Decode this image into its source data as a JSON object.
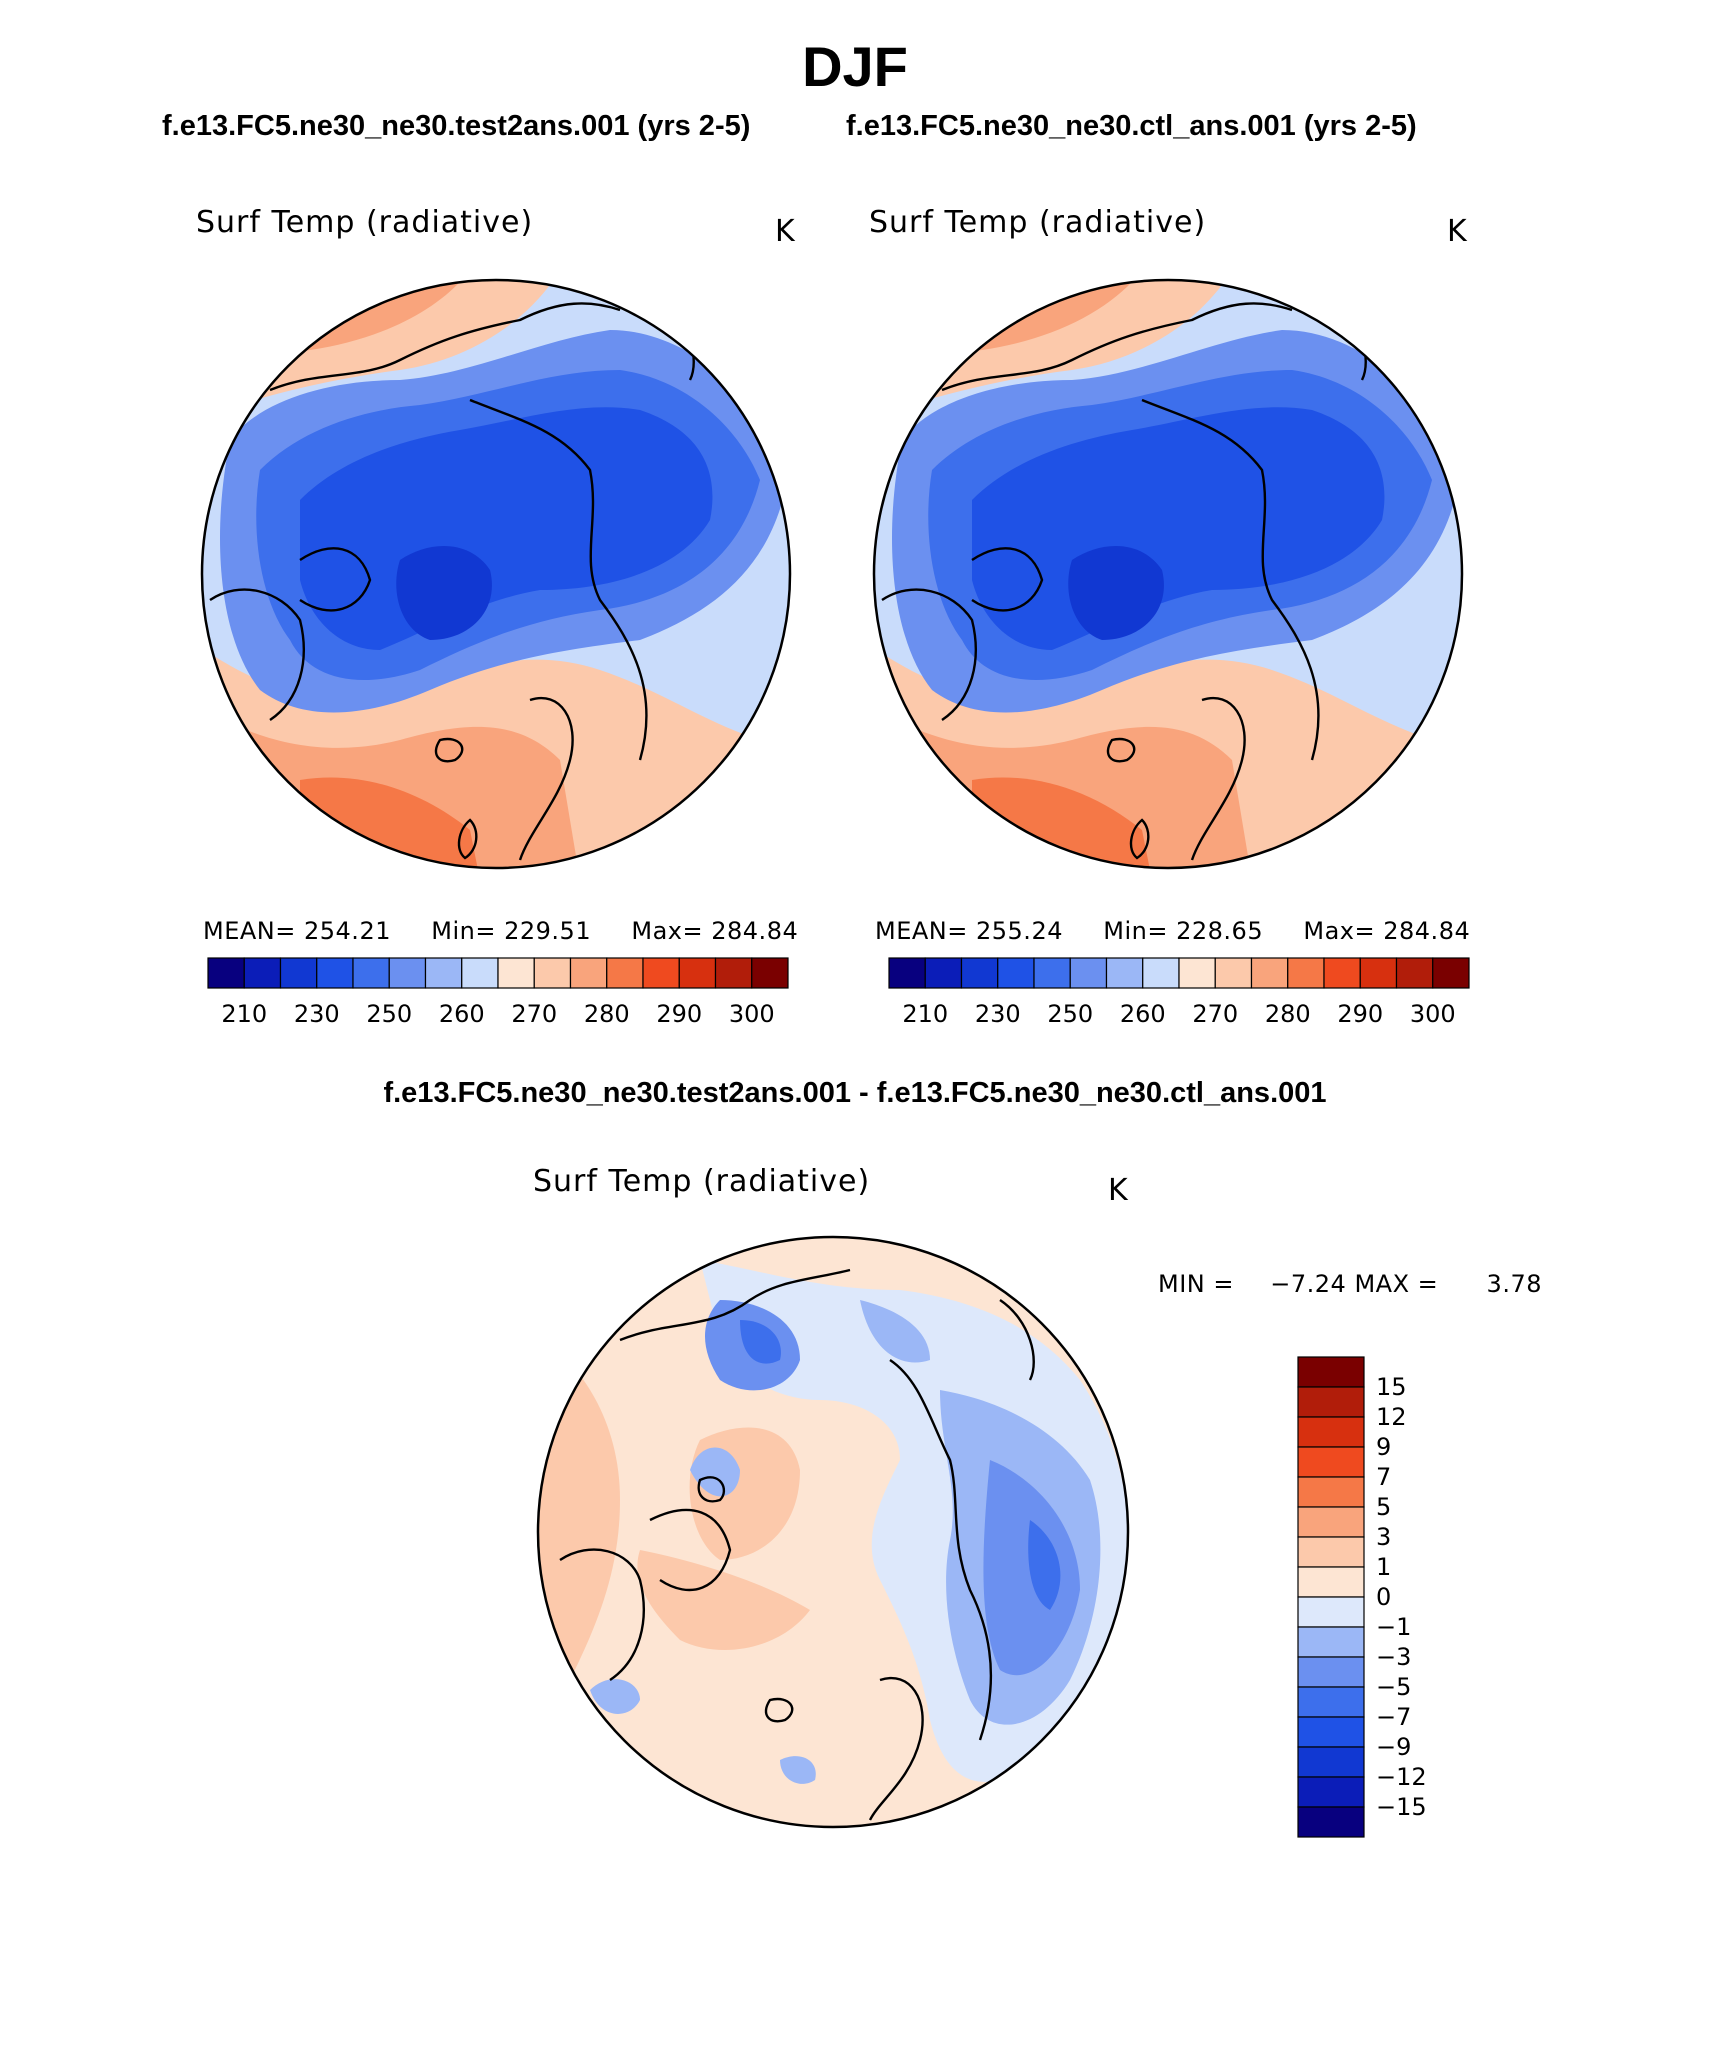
{
  "page": {
    "title": "DJF",
    "subtitle_left": "f.e13.FC5.ne30_ne30.test2ans.001 (yrs 2-5)",
    "subtitle_right": "f.e13.FC5.ne30_ne30.ctl_ans.001 (yrs 2-5)",
    "diff_title": "f.e13.FC5.ne30_ne30.test2ans.001 - f.e13.FC5.ne30_ne30.ctl_ans.001"
  },
  "colors": {
    "abs_palette": [
      "#08007f",
      "#0b1db8",
      "#1138d2",
      "#1f52e6",
      "#3d6fec",
      "#6b90f0",
      "#9bb7f6",
      "#c9dcfb",
      "#fde5d3",
      "#fcc9ab",
      "#f9a47c",
      "#f57847",
      "#ef4a1f",
      "#d7300f",
      "#b11d0a",
      "#7a0000"
    ],
    "diff_palette": [
      "#08007f",
      "#0b1db8",
      "#1138d2",
      "#1f52e6",
      "#3d6fec",
      "#6b90f0",
      "#9bb7f6",
      "#dde8fb",
      "#fde5d3",
      "#fcc9ab",
      "#f9a47c",
      "#f57847",
      "#ef4a1f",
      "#d7300f",
      "#b11d0a",
      "#7a0000"
    ]
  },
  "chart_data": [
    {
      "type": "heatmap",
      "projection": "north-polar-stereographic",
      "variable": "Surf Temp (radiative)",
      "units": "K",
      "case": "f.e13.FC5.ne30_ne30.test2ans.001 (yrs 2-5)",
      "stats": {
        "mean_label": "MEAN=",
        "mean": "254.21",
        "min_label": "Min=",
        "min": "229.51",
        "max_label": "Max=",
        "max": "284.84"
      },
      "colorbar_ticks": [
        "210",
        "230",
        "250",
        "260",
        "270",
        "280",
        "290",
        "300"
      ],
      "colorbar_orientation": "horizontal"
    },
    {
      "type": "heatmap",
      "projection": "north-polar-stereographic",
      "variable": "Surf Temp (radiative)",
      "units": "K",
      "case": "f.e13.FC5.ne30_ne30.ctl_ans.001 (yrs 2-5)",
      "stats": {
        "mean_label": "MEAN=",
        "mean": "255.24",
        "min_label": "Min=",
        "min": "228.65",
        "max_label": "Max=",
        "max": "284.84"
      },
      "colorbar_ticks": [
        "210",
        "230",
        "250",
        "260",
        "270",
        "280",
        "290",
        "300"
      ],
      "colorbar_orientation": "horizontal"
    },
    {
      "type": "heatmap",
      "projection": "north-polar-stereographic",
      "variable": "Surf Temp (radiative)",
      "units": "K",
      "case": "f.e13.FC5.ne30_ne30.test2ans.001 - f.e13.FC5.ne30_ne30.ctl_ans.001",
      "stats": {
        "min_label": "MIN =",
        "min": "−7.24",
        "max_label": "MAX =",
        "max": "3.78"
      },
      "colorbar_ticks": [
        "15",
        "12",
        "9",
        "7",
        "5",
        "3",
        "1",
        "0",
        "−1",
        "−3",
        "−5",
        "−7",
        "−9",
        "−12",
        "−15"
      ],
      "colorbar_orientation": "vertical"
    }
  ]
}
